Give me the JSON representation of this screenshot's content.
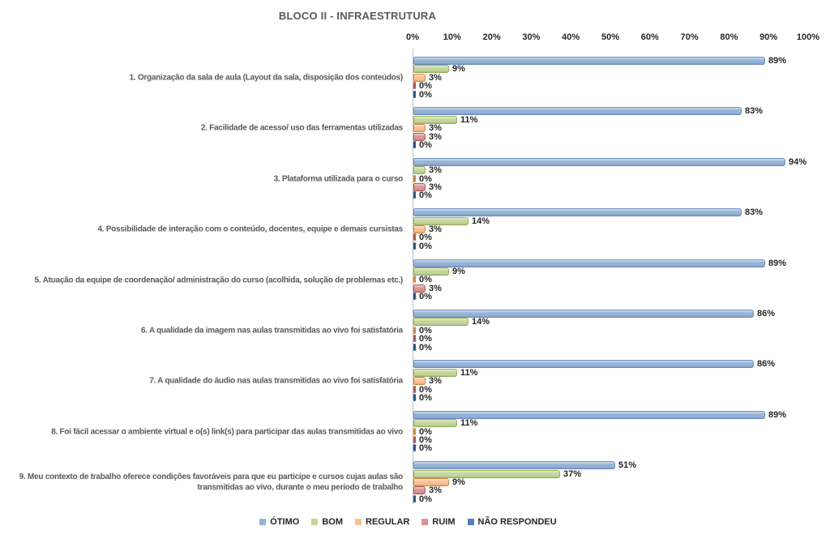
{
  "chart_data": {
    "type": "bar",
    "orientation": "horizontal",
    "title": "BLOCO II - INFRAESTRUTURA",
    "x_axis": {
      "position": "top",
      "min": 0,
      "max": 100,
      "ticks": [
        "0%",
        "10%",
        "20%",
        "30%",
        "40%",
        "50%",
        "60%",
        "70%",
        "80%",
        "90%",
        "100%"
      ]
    },
    "grid": false,
    "legend_position": "bottom",
    "data_label_format": "{value}%",
    "categories": [
      "1. Organização da sala de aula (Layout da sala, disposição dos conteúdos)",
      "2. Facilidade de acesso/ uso das ferramentas utilizadas",
      "3. Plataforma utilizada para o curso",
      "4. Possibilidade de interação com o conteúdo, docentes, equipe e demais cursistas",
      "5. Atuação da equipe de coordenação/ administração do curso (acolhida, solução de problemas etc.)",
      "6. A qualidade da imagem nas aulas transmitidas ao vivo foi satisfatória",
      "7. A qualidade do áudio nas aulas transmitidas ao vivo foi satisfatória",
      "8. Foi fácil acessar o ambiente virtual e o(s) link(s) para participar das aulas transmitidas ao vivo",
      "9. Meu contexto de trabalho oferece condições favoráveis para que eu participe e cursos cujas aulas são transmitidas ao vivo, durante o meu período de trabalho"
    ],
    "series": [
      {
        "name": "ÓTIMO",
        "color": "#95B3D7",
        "border": "#6E8EBF",
        "values": [
          89,
          83,
          94,
          83,
          89,
          86,
          86,
          89,
          51
        ]
      },
      {
        "name": "BOM",
        "color": "#C3D69B",
        "border": "#94AE5A",
        "values": [
          9,
          11,
          3,
          14,
          9,
          14,
          11,
          11,
          37
        ]
      },
      {
        "name": "REGULAR",
        "color": "#FAC090",
        "border": "#CE8B44",
        "values": [
          3,
          3,
          0,
          3,
          0,
          0,
          3,
          0,
          9
        ]
      },
      {
        "name": "RUIM",
        "color": "#D99694",
        "border": "#A85B59",
        "values": [
          0,
          3,
          3,
          0,
          3,
          0,
          0,
          0,
          3
        ]
      },
      {
        "name": "NÃO RESPONDEU",
        "color": "#4F81BD",
        "border": "#2C5788",
        "values": [
          0,
          0,
          0,
          0,
          0,
          0,
          0,
          0,
          0
        ]
      }
    ]
  }
}
